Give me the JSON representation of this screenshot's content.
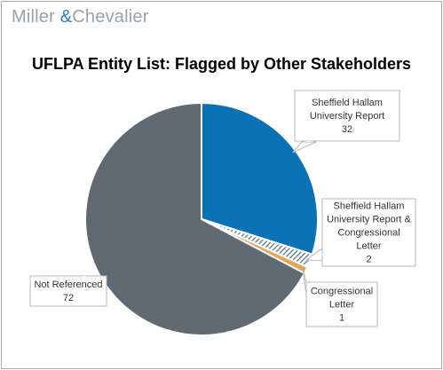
{
  "logo": {
    "name_part1": "Miller ",
    "ampersand": "&",
    "name_part2": "Chevalier"
  },
  "colors": {
    "brand_gray": "#98a2a8",
    "brand_blue": "#2c7ab8",
    "slice_blue": "#0b72b5",
    "slice_hatch": "#5a7a8a",
    "slice_orange": "#e8a359",
    "slice_gray": "#5f6a72"
  },
  "chart_data": {
    "type": "pie",
    "title": "UFLPA Entity List: Flagged by Other Stakeholders",
    "legend": "none",
    "slices": [
      {
        "label_lines": [
          "Sheffield Hallam",
          "University Report"
        ],
        "value": 32,
        "color": "#0b72b5",
        "pattern": "solid"
      },
      {
        "label_lines": [
          "Sheffield Hallam",
          "University Report &",
          "Congressional",
          "Letter"
        ],
        "value": 2,
        "color": "#5a7a8a",
        "pattern": "hatched"
      },
      {
        "label_lines": [
          "Congressional",
          "Letter"
        ],
        "value": 1,
        "color": "#e8a359",
        "pattern": "solid"
      },
      {
        "label_lines": [
          "Not Referenced"
        ],
        "value": 72,
        "color": "#5f6a72",
        "pattern": "solid"
      }
    ]
  }
}
